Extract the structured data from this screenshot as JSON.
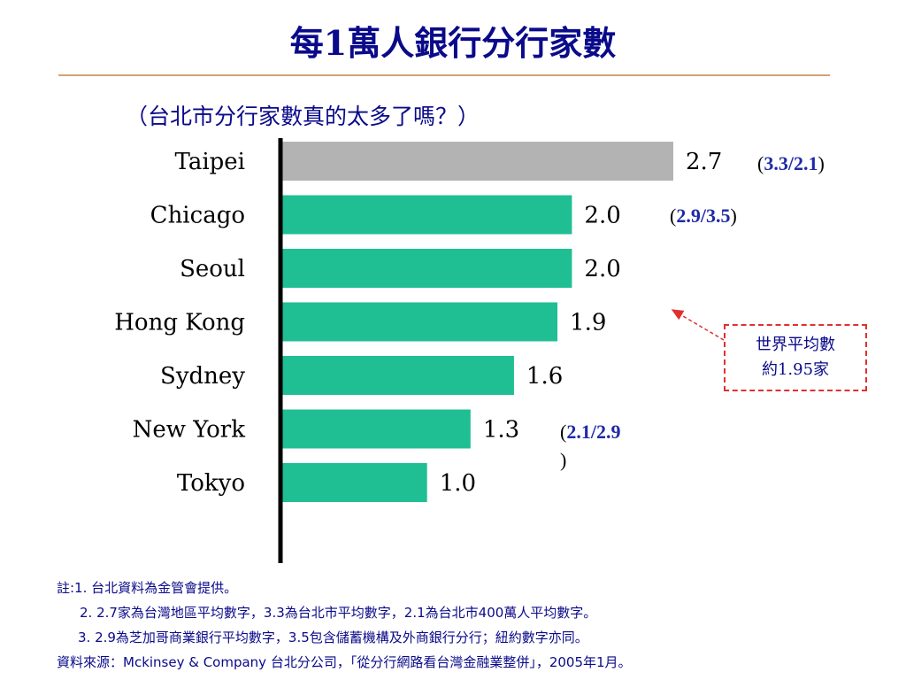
{
  "title": "每1萬人銀行分行家數",
  "subtitle": "（台北市分行家數真的太多了嗎？）",
  "chart_data": {
    "type": "bar",
    "orientation": "horizontal",
    "categories": [
      "Taipei",
      "Chicago",
      "Seoul",
      "Hong Kong",
      "Sydney",
      "New York",
      "Tokyo"
    ],
    "values": [
      2.7,
      2.0,
      2.0,
      1.9,
      1.6,
      1.3,
      1.0
    ],
    "value_labels": [
      "2.7",
      "2.0",
      "2.0",
      "1.9",
      "1.6",
      "1.3",
      "1.0"
    ],
    "highlight_color": "#b3b3b3",
    "bar_color": "#1fbf93",
    "xlim": [
      0,
      2.7
    ]
  },
  "annotations": {
    "taipei": {
      "open": "(",
      "value": "3.3/2.1",
      "close": ")"
    },
    "chicago": {
      "open": "(",
      "value": "2.9/3.5",
      "close": ")"
    },
    "newyork": {
      "open": "(",
      "value": "2.1/2.9",
      "close": ")"
    }
  },
  "callout": {
    "line1": "世界平均數",
    "line2": "約1.95家"
  },
  "notes": [
    "註:1. 台北資料為金管會提供。",
    "2. 2.7家為台灣地區平均數字，3.3為台北市平均數字，2.1為台北市400萬人平均數字。",
    "3. 2.9為芝加哥商業銀行平均數字，3.5包含儲蓄機構及外商銀行分行；紐約數字亦同。",
    "資料來源：Mckinsey & Company 台北分公司，「從分行網路看台灣金融業整併」，2005年1月。"
  ],
  "colors": {
    "title": "#0a0a8a",
    "annotation_value": "#1f2aa6",
    "callout_border": "#e03030"
  }
}
